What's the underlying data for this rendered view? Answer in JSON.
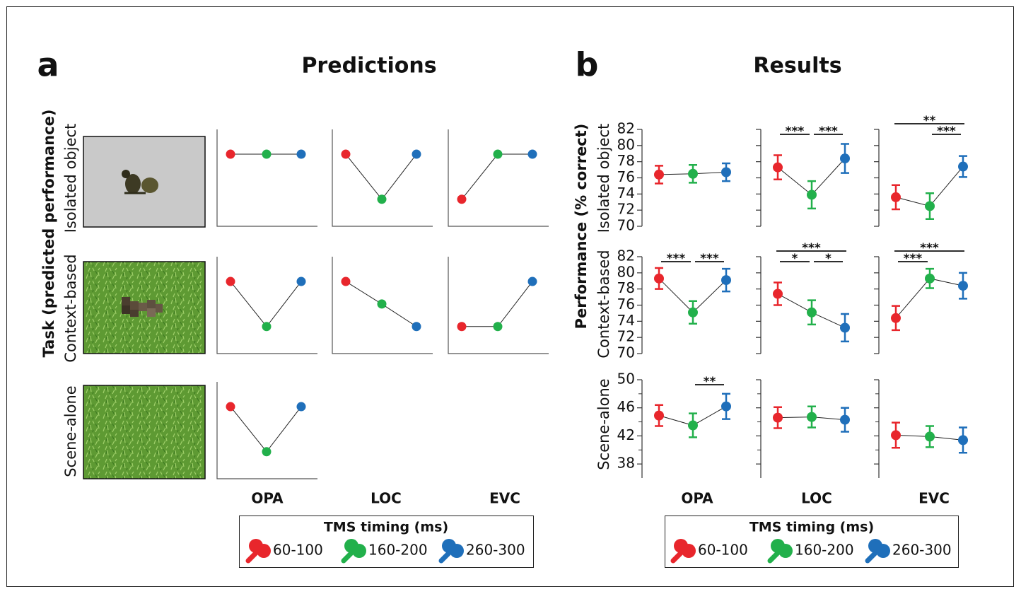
{
  "panels": [
    {
      "label": "a",
      "title": "Predictions",
      "y_label": "Task (predicted performance)",
      "row_labels": [
        "Isolated object",
        "Context-based",
        "Scene-alone"
      ],
      "column_labels": [
        "OPA",
        "LOC",
        "EVC"
      ],
      "legend": {
        "title": "TMS timing (ms)",
        "series": [
          {
            "name": "60-100",
            "color": "#e8262c"
          },
          {
            "name": "160-200",
            "color": "#22b04b"
          },
          {
            "name": "260-300",
            "color": "#1f6fba"
          }
        ]
      }
    },
    {
      "label": "b",
      "title": "Results",
      "y_label": "Performance (% correct)",
      "row_labels": [
        "Isolated object",
        "Context-based",
        "Scene-alone"
      ],
      "column_labels": [
        "OPA",
        "LOC",
        "EVC"
      ],
      "legend": {
        "title": "TMS timing (ms)",
        "series": [
          {
            "name": "60-100",
            "color": "#e8262c"
          },
          {
            "name": "160-200",
            "color": "#22b04b"
          },
          {
            "name": "260-300",
            "color": "#1f6fba"
          }
        ]
      }
    }
  ],
  "chart_data": [
    {
      "type": "line",
      "values": [
        1,
        1,
        1
      ],
      "ylim": [
        -0.6,
        1.55
      ]
    },
    {
      "type": "line",
      "values": [
        1,
        0,
        1
      ],
      "ylim": [
        -0.6,
        1.55
      ]
    },
    {
      "type": "line",
      "values": [
        0,
        1,
        1
      ],
      "ylim": [
        -0.6,
        1.55
      ]
    },
    {
      "type": "line",
      "values": [
        1,
        0,
        1
      ],
      "ylim": [
        -0.6,
        1.55
      ]
    },
    {
      "type": "line",
      "values": [
        1,
        0.5,
        0
      ],
      "ylim": [
        -0.6,
        1.55
      ]
    },
    {
      "type": "line",
      "values": [
        0,
        0,
        1
      ],
      "ylim": [
        -0.6,
        1.55
      ]
    },
    {
      "type": "line",
      "values": [
        1,
        0,
        1
      ],
      "ylim": [
        -0.6,
        1.55
      ]
    },
    {
      "type": "errorbar",
      "values": [
        76.4,
        76.5,
        76.7
      ],
      "errors": [
        1.1,
        1.1,
        1.1
      ],
      "ylim": [
        70,
        82
      ],
      "yticks": [
        70,
        72,
        74,
        76,
        78,
        80,
        82
      ],
      "significance": []
    },
    {
      "type": "errorbar",
      "values": [
        77.3,
        73.9,
        78.4
      ],
      "errors": [
        1.5,
        1.7,
        1.8
      ],
      "ylim": [
        70,
        82
      ],
      "yticks": [
        70,
        72,
        74,
        76,
        78,
        80,
        82
      ],
      "significance": [
        {
          "between": [
            0,
            1
          ],
          "label": "***"
        },
        {
          "between": [
            1,
            2
          ],
          "label": "***"
        }
      ]
    },
    {
      "type": "errorbar",
      "values": [
        73.6,
        72.5,
        77.4
      ],
      "errors": [
        1.5,
        1.6,
        1.3
      ],
      "ylim": [
        70,
        82
      ],
      "yticks": [
        70,
        72,
        74,
        76,
        78,
        80,
        82
      ],
      "significance": [
        {
          "between": [
            0,
            2
          ],
          "label": "**"
        },
        {
          "between": [
            1,
            2
          ],
          "label": "***"
        }
      ]
    },
    {
      "type": "errorbar",
      "values": [
        79.3,
        75.1,
        79.1
      ],
      "errors": [
        1.3,
        1.4,
        1.4
      ],
      "ylim": [
        70,
        82
      ],
      "yticks": [
        70,
        72,
        74,
        76,
        78,
        80,
        82
      ],
      "significance": [
        {
          "between": [
            0,
            1
          ],
          "label": "***"
        },
        {
          "between": [
            1,
            2
          ],
          "label": "***"
        }
      ]
    },
    {
      "type": "errorbar",
      "values": [
        77.4,
        75.1,
        73.2
      ],
      "errors": [
        1.4,
        1.5,
        1.7
      ],
      "ylim": [
        70,
        82
      ],
      "yticks": [
        70,
        72,
        74,
        76,
        78,
        80,
        82
      ],
      "significance": [
        {
          "between": [
            0,
            2
          ],
          "label": "***"
        },
        {
          "between": [
            0,
            1
          ],
          "label": "*"
        },
        {
          "between": [
            1,
            2
          ],
          "label": "*"
        }
      ]
    },
    {
      "type": "errorbar",
      "values": [
        74.4,
        79.3,
        78.4
      ],
      "errors": [
        1.5,
        1.2,
        1.6
      ],
      "ylim": [
        70,
        82
      ],
      "yticks": [
        70,
        72,
        74,
        76,
        78,
        80,
        82
      ],
      "significance": [
        {
          "between": [
            0,
            2
          ],
          "label": "***"
        },
        {
          "between": [
            0,
            1
          ],
          "label": "***"
        }
      ]
    },
    {
      "type": "errorbar",
      "values": [
        44.9,
        43.5,
        46.2
      ],
      "errors": [
        1.5,
        1.7,
        1.8
      ],
      "ylim": [
        36,
        50
      ],
      "yticks": [
        38,
        42,
        46,
        50
      ],
      "minor_yticks": [
        40,
        44,
        48
      ],
      "significance": [
        {
          "between": [
            1,
            2
          ],
          "label": "**"
        }
      ]
    },
    {
      "type": "errorbar",
      "values": [
        44.6,
        44.7,
        44.3
      ],
      "errors": [
        1.5,
        1.5,
        1.7
      ],
      "ylim": [
        36,
        50
      ],
      "yticks": [
        38,
        42,
        46,
        50
      ],
      "minor_yticks": [
        40,
        44,
        48
      ],
      "significance": []
    },
    {
      "type": "errorbar",
      "values": [
        42.1,
        41.9,
        41.4
      ],
      "errors": [
        1.8,
        1.5,
        1.8
      ],
      "ylim": [
        36,
        50
      ],
      "yticks": [
        38,
        42,
        46,
        50
      ],
      "minor_yticks": [
        40,
        44,
        48
      ],
      "significance": []
    }
  ]
}
